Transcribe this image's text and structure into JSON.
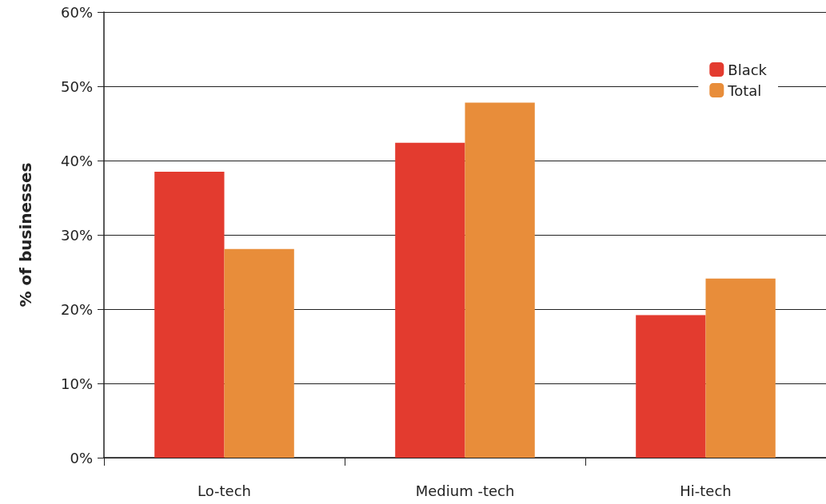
{
  "chart_data": {
    "type": "bar",
    "ylabel": "% of businesses",
    "categories": [
      "Lo-tech",
      "Medium -tech",
      "Hi-tech"
    ],
    "series": [
      {
        "name": "Black",
        "color": "#e33b2f",
        "values": [
          38.5,
          42.4,
          19.2
        ]
      },
      {
        "name": "Total",
        "color": "#e88d3a",
        "values": [
          28.1,
          47.8,
          24.1
        ]
      }
    ],
    "ylim": [
      0,
      60
    ],
    "yticks": [
      {
        "value": 0,
        "label": "0%"
      },
      {
        "value": 10,
        "label": "10%"
      },
      {
        "value": 20,
        "label": "20%"
      },
      {
        "value": 30,
        "label": "30%"
      },
      {
        "value": 40,
        "label": "40%"
      },
      {
        "value": 50,
        "label": "50%"
      },
      {
        "value": 60,
        "label": "60%"
      }
    ],
    "grid": "y",
    "legend": "top right"
  }
}
